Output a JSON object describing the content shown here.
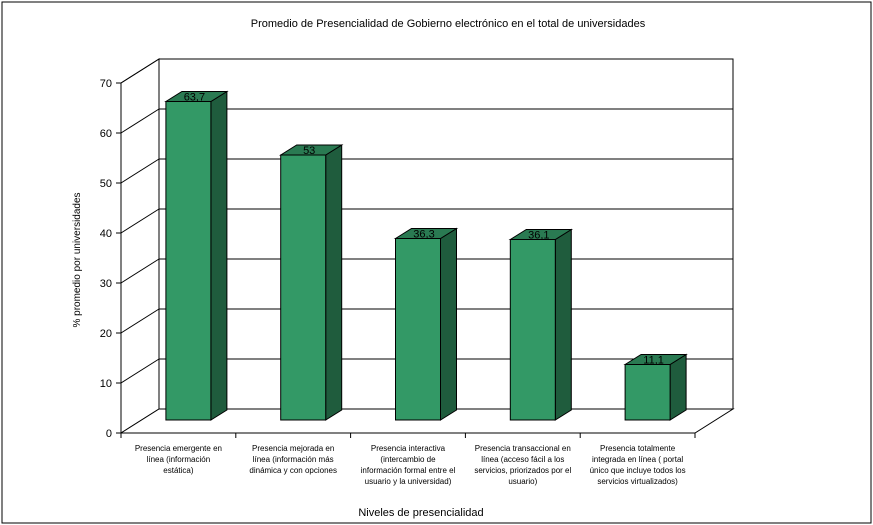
{
  "chart_data": {
    "type": "bar",
    "title": "Promedio de Presencialidad de Gobierno electrónico en el total de universidades",
    "xlabel": "Niveles de presencialidad",
    "ylabel": "% promedio por universidades",
    "ylim": [
      0,
      70
    ],
    "yticks": [
      "0",
      "10",
      "20",
      "30",
      "40",
      "50",
      "60",
      "70"
    ],
    "grid": true,
    "categories": [
      [
        "Presencia emergente en",
        "línea (información",
        "estática)"
      ],
      [
        "Presencia mejorada en",
        "línea (información más",
        "dinámica y con opciones"
      ],
      [
        "Presencia interactiva",
        "(intercambio de",
        "información formal entre el",
        "usuario y la universidad)"
      ],
      [
        "Presencia transaccional en",
        "línea (acceso fácil a los",
        "servicios, priorizados por el",
        "usuario)"
      ],
      [
        "Presencia totalmente",
        "integrada en línea ( portal",
        "único que incluye todos los",
        "servicios virtualizados)"
      ]
    ],
    "values": [
      63.7,
      53,
      36.3,
      36.1,
      11.1
    ],
    "data_labels": [
      "63,7",
      "53",
      "36,3",
      "36,1",
      "11,1"
    ],
    "colors": {
      "front": "#339966",
      "top": "#2a7a52",
      "side": "#1f5c3d",
      "edge": "#000000"
    }
  }
}
